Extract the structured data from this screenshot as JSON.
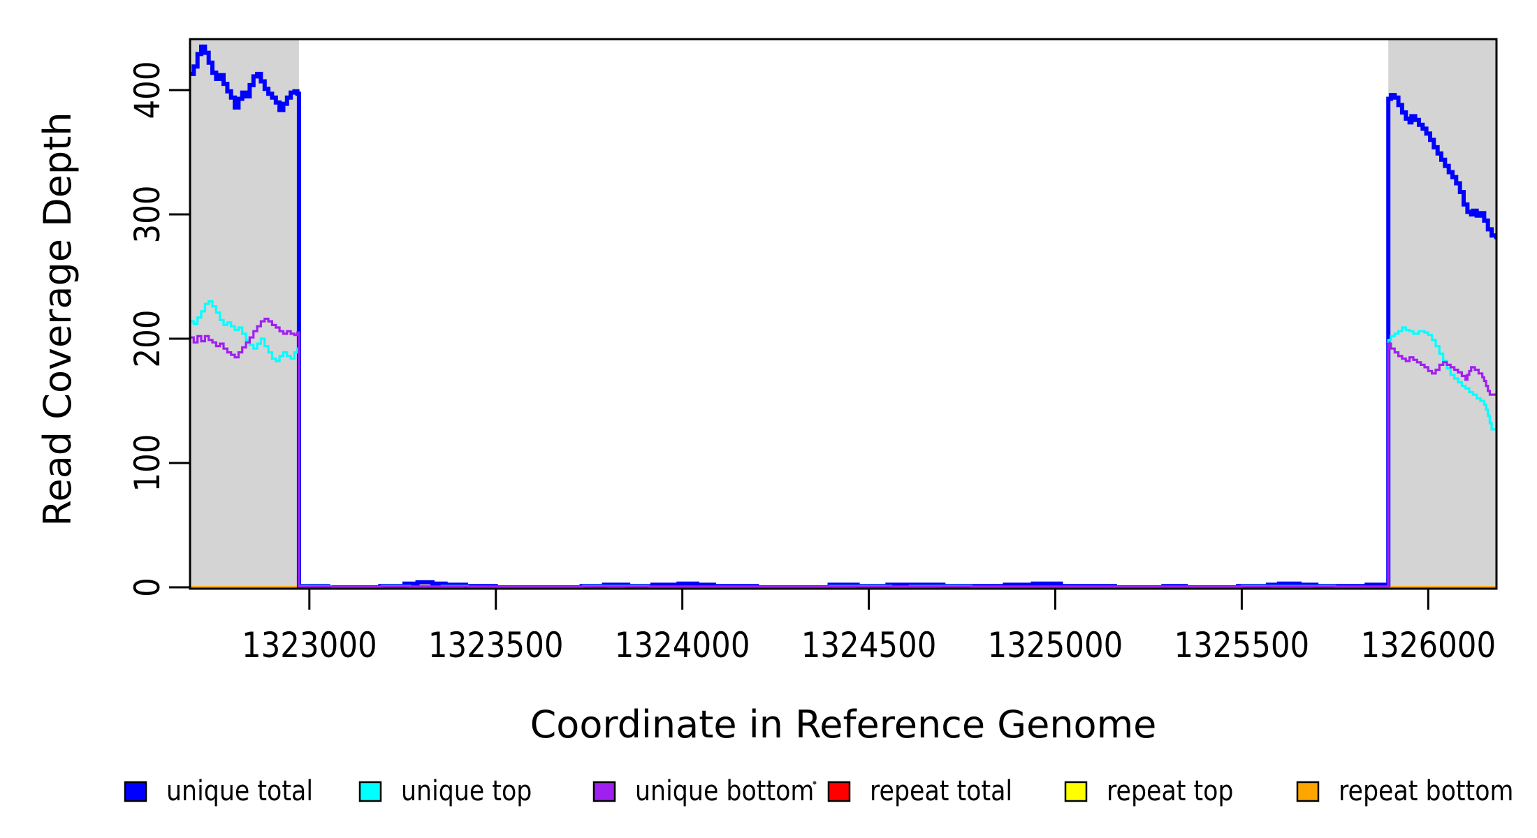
{
  "page": {
    "background": "#ffffff"
  },
  "chart_data": {
    "type": "line",
    "line_style": "step",
    "title": "",
    "xlabel": "Coordinate in Reference Genome",
    "ylabel": "Read Coverage Depth",
    "xlim": [
      1322680,
      1326183
    ],
    "ylim": [
      0,
      441
    ],
    "x_ticks": [
      1323000,
      1323500,
      1324000,
      1324500,
      1325000,
      1325500,
      1326000
    ],
    "x_tick_labels": [
      "1323000",
      "1323500",
      "1324000",
      "1324500",
      "1325000",
      "1325500",
      "1326000"
    ],
    "y_ticks": [
      0,
      100,
      200,
      300,
      400
    ],
    "y_tick_labels": [
      "0",
      "100",
      "200",
      "300",
      "400"
    ],
    "grid": false,
    "axis_color": "#000000",
    "plot_background": "#ffffff",
    "shaded_regions": [
      {
        "name": "left-flank",
        "x_start": 1322680,
        "x_end": 1322972,
        "color": "#d4d4d4"
      },
      {
        "name": "right-flank",
        "x_start": 1325893,
        "x_end": 1326183,
        "color": "#d4d4d4"
      }
    ],
    "legend": {
      "position": "bottom",
      "items": [
        {
          "label": "unique total",
          "color": "#0000ff"
        },
        {
          "label": "unique top",
          "color": "#00ffff"
        },
        {
          "label": "unique bottom",
          "color": "#a020f0"
        },
        {
          "label": "repeat total",
          "color": "#ff0000"
        },
        {
          "label": "repeat top",
          "color": "#ffff00"
        },
        {
          "label": "repeat bottom",
          "color": "#ffa500"
        }
      ]
    },
    "series": [
      {
        "name": "unique total",
        "color": "#0000ff",
        "line_width": 6,
        "draw_order": 3,
        "points": [
          [
            1322680,
            413
          ],
          [
            1322690,
            419
          ],
          [
            1322700,
            429
          ],
          [
            1322710,
            435
          ],
          [
            1322720,
            430
          ],
          [
            1322730,
            422
          ],
          [
            1322740,
            414
          ],
          [
            1322750,
            409
          ],
          [
            1322760,
            412
          ],
          [
            1322770,
            405
          ],
          [
            1322780,
            399
          ],
          [
            1322790,
            394
          ],
          [
            1322800,
            386
          ],
          [
            1322810,
            393
          ],
          [
            1322820,
            398
          ],
          [
            1322830,
            395
          ],
          [
            1322840,
            404
          ],
          [
            1322850,
            411
          ],
          [
            1322860,
            413
          ],
          [
            1322870,
            407
          ],
          [
            1322880,
            401
          ],
          [
            1322890,
            397
          ],
          [
            1322900,
            394
          ],
          [
            1322910,
            390
          ],
          [
            1322920,
            384
          ],
          [
            1322930,
            389
          ],
          [
            1322940,
            394
          ],
          [
            1322950,
            398
          ],
          [
            1322960,
            399
          ],
          [
            1322968,
            397
          ],
          [
            1322972,
            1
          ],
          [
            1323050,
            0
          ],
          [
            1323190,
            1
          ],
          [
            1323255,
            3
          ],
          [
            1323290,
            4
          ],
          [
            1323330,
            3
          ],
          [
            1323365,
            2
          ],
          [
            1323420,
            1
          ],
          [
            1323500,
            0
          ],
          [
            1323730,
            1
          ],
          [
            1323790,
            2
          ],
          [
            1323855,
            1
          ],
          [
            1323920,
            2
          ],
          [
            1323990,
            3
          ],
          [
            1324040,
            2
          ],
          [
            1324085,
            1
          ],
          [
            1324200,
            0
          ],
          [
            1324395,
            2
          ],
          [
            1324470,
            1
          ],
          [
            1324550,
            2
          ],
          [
            1324615,
            2
          ],
          [
            1324700,
            1
          ],
          [
            1324775,
            1
          ],
          [
            1324865,
            2
          ],
          [
            1324940,
            3
          ],
          [
            1325015,
            1
          ],
          [
            1325090,
            1
          ],
          [
            1325160,
            0
          ],
          [
            1325290,
            1
          ],
          [
            1325350,
            0
          ],
          [
            1325490,
            1
          ],
          [
            1325570,
            2
          ],
          [
            1325600,
            3
          ],
          [
            1325655,
            2
          ],
          [
            1325700,
            1
          ],
          [
            1325745,
            1
          ],
          [
            1325835,
            2
          ],
          [
            1325893,
            393
          ],
          [
            1325900,
            396
          ],
          [
            1325910,
            394
          ],
          [
            1325920,
            388
          ],
          [
            1325930,
            382
          ],
          [
            1325940,
            377
          ],
          [
            1325950,
            374
          ],
          [
            1325955,
            379
          ],
          [
            1325965,
            376
          ],
          [
            1325975,
            372
          ],
          [
            1325985,
            369
          ],
          [
            1325995,
            365
          ],
          [
            1326005,
            360
          ],
          [
            1326015,
            354
          ],
          [
            1326025,
            349
          ],
          [
            1326035,
            344
          ],
          [
            1326045,
            339
          ],
          [
            1326055,
            334
          ],
          [
            1326065,
            330
          ],
          [
            1326075,
            325
          ],
          [
            1326085,
            318
          ],
          [
            1326095,
            308
          ],
          [
            1326105,
            302
          ],
          [
            1326115,
            300
          ],
          [
            1326120,
            303
          ],
          [
            1326130,
            299
          ],
          [
            1326140,
            301
          ],
          [
            1326150,
            295
          ],
          [
            1326160,
            288
          ],
          [
            1326170,
            283
          ],
          [
            1326183,
            280
          ]
        ]
      },
      {
        "name": "unique top",
        "color": "#00ffff",
        "line_width": 3.2,
        "draw_order": 4,
        "points": [
          [
            1322680,
            214
          ],
          [
            1322690,
            212
          ],
          [
            1322700,
            217
          ],
          [
            1322710,
            222
          ],
          [
            1322720,
            228
          ],
          [
            1322730,
            230
          ],
          [
            1322740,
            226
          ],
          [
            1322750,
            221
          ],
          [
            1322760,
            215
          ],
          [
            1322770,
            211
          ],
          [
            1322780,
            213
          ],
          [
            1322790,
            210
          ],
          [
            1322800,
            207
          ],
          [
            1322810,
            209
          ],
          [
            1322820,
            204
          ],
          [
            1322830,
            199
          ],
          [
            1322840,
            195
          ],
          [
            1322850,
            192
          ],
          [
            1322860,
            196
          ],
          [
            1322870,
            200
          ],
          [
            1322880,
            194
          ],
          [
            1322890,
            189
          ],
          [
            1322900,
            184
          ],
          [
            1322910,
            182
          ],
          [
            1322920,
            186
          ],
          [
            1322930,
            189
          ],
          [
            1322940,
            186
          ],
          [
            1322950,
            184
          ],
          [
            1322960,
            189
          ],
          [
            1322968,
            192
          ],
          [
            1322972,
            1
          ],
          [
            1323060,
            0
          ],
          [
            1323195,
            1
          ],
          [
            1323270,
            0
          ],
          [
            1323355,
            1
          ],
          [
            1323425,
            0
          ],
          [
            1323735,
            1
          ],
          [
            1323910,
            0
          ],
          [
            1324395,
            1
          ],
          [
            1324560,
            0
          ],
          [
            1324610,
            1
          ],
          [
            1324775,
            0
          ],
          [
            1325500,
            1
          ],
          [
            1325750,
            0
          ],
          [
            1325893,
            199
          ],
          [
            1325900,
            202
          ],
          [
            1325910,
            204
          ],
          [
            1325920,
            206
          ],
          [
            1325930,
            209
          ],
          [
            1325940,
            207
          ],
          [
            1325950,
            206
          ],
          [
            1325960,
            204
          ],
          [
            1325975,
            206
          ],
          [
            1325990,
            205
          ],
          [
            1326000,
            203
          ],
          [
            1326010,
            199
          ],
          [
            1326020,
            194
          ],
          [
            1326030,
            188
          ],
          [
            1326040,
            182
          ],
          [
            1326050,
            176
          ],
          [
            1326060,
            171
          ],
          [
            1326070,
            168
          ],
          [
            1326080,
            165
          ],
          [
            1326090,
            162
          ],
          [
            1326100,
            160
          ],
          [
            1326110,
            157
          ],
          [
            1326120,
            155
          ],
          [
            1326130,
            152
          ],
          [
            1326140,
            150
          ],
          [
            1326150,
            147
          ],
          [
            1326155,
            143
          ],
          [
            1326160,
            138
          ],
          [
            1326165,
            132
          ],
          [
            1326170,
            127
          ],
          [
            1326183,
            125
          ]
        ]
      },
      {
        "name": "unique bottom",
        "color": "#a020f0",
        "line_width": 3.2,
        "draw_order": 5,
        "points": [
          [
            1322680,
            201
          ],
          [
            1322690,
            197
          ],
          [
            1322700,
            202
          ],
          [
            1322710,
            198
          ],
          [
            1322720,
            202
          ],
          [
            1322730,
            199
          ],
          [
            1322740,
            197
          ],
          [
            1322750,
            194
          ],
          [
            1322760,
            196
          ],
          [
            1322770,
            192
          ],
          [
            1322780,
            189
          ],
          [
            1322790,
            187
          ],
          [
            1322800,
            185
          ],
          [
            1322810,
            189
          ],
          [
            1322820,
            193
          ],
          [
            1322830,
            197
          ],
          [
            1322840,
            201
          ],
          [
            1322850,
            206
          ],
          [
            1322860,
            210
          ],
          [
            1322870,
            214
          ],
          [
            1322880,
            216
          ],
          [
            1322890,
            214
          ],
          [
            1322900,
            211
          ],
          [
            1322910,
            209
          ],
          [
            1322920,
            206
          ],
          [
            1322930,
            204
          ],
          [
            1322940,
            206
          ],
          [
            1322950,
            204
          ],
          [
            1322960,
            203
          ],
          [
            1322968,
            205
          ],
          [
            1322972,
            0.7
          ],
          [
            1325893,
            196
          ],
          [
            1325900,
            192
          ],
          [
            1325910,
            189
          ],
          [
            1325920,
            186
          ],
          [
            1325930,
            184
          ],
          [
            1325940,
            182
          ],
          [
            1325950,
            185
          ],
          [
            1325960,
            183
          ],
          [
            1325970,
            181
          ],
          [
            1325980,
            179
          ],
          [
            1325990,
            177
          ],
          [
            1326000,
            174
          ],
          [
            1326010,
            172
          ],
          [
            1326020,
            175
          ],
          [
            1326030,
            179
          ],
          [
            1326040,
            181
          ],
          [
            1326050,
            179
          ],
          [
            1326060,
            177
          ],
          [
            1326070,
            175
          ],
          [
            1326080,
            173
          ],
          [
            1326090,
            170
          ],
          [
            1326100,
            167
          ],
          [
            1326105,
            171
          ],
          [
            1326110,
            174
          ],
          [
            1326115,
            177
          ],
          [
            1326125,
            175
          ],
          [
            1326135,
            172
          ],
          [
            1326145,
            169
          ],
          [
            1326150,
            166
          ],
          [
            1326155,
            162
          ],
          [
            1326160,
            158
          ],
          [
            1326165,
            155
          ],
          [
            1326183,
            156
          ]
        ]
      },
      {
        "name": "repeat total",
        "color": "#ff0000",
        "line_width": 3,
        "draw_order": 1,
        "points": [
          [
            1322680,
            0
          ],
          [
            1324865,
            1.5
          ],
          [
            1325015,
            0
          ],
          [
            1326183,
            0
          ]
        ]
      },
      {
        "name": "repeat top",
        "color": "#ffff00",
        "line_width": 3,
        "draw_order": 0,
        "points": [
          [
            1322680,
            0
          ],
          [
            1325590,
            0.8
          ],
          [
            1325660,
            0
          ],
          [
            1326183,
            0
          ]
        ]
      },
      {
        "name": "repeat bottom",
        "color": "#ffa500",
        "line_width": 3.5,
        "draw_order": 2,
        "points": [
          [
            1322680,
            0
          ],
          [
            1323285,
            1
          ],
          [
            1323345,
            0
          ],
          [
            1326183,
            0
          ]
        ]
      }
    ]
  }
}
